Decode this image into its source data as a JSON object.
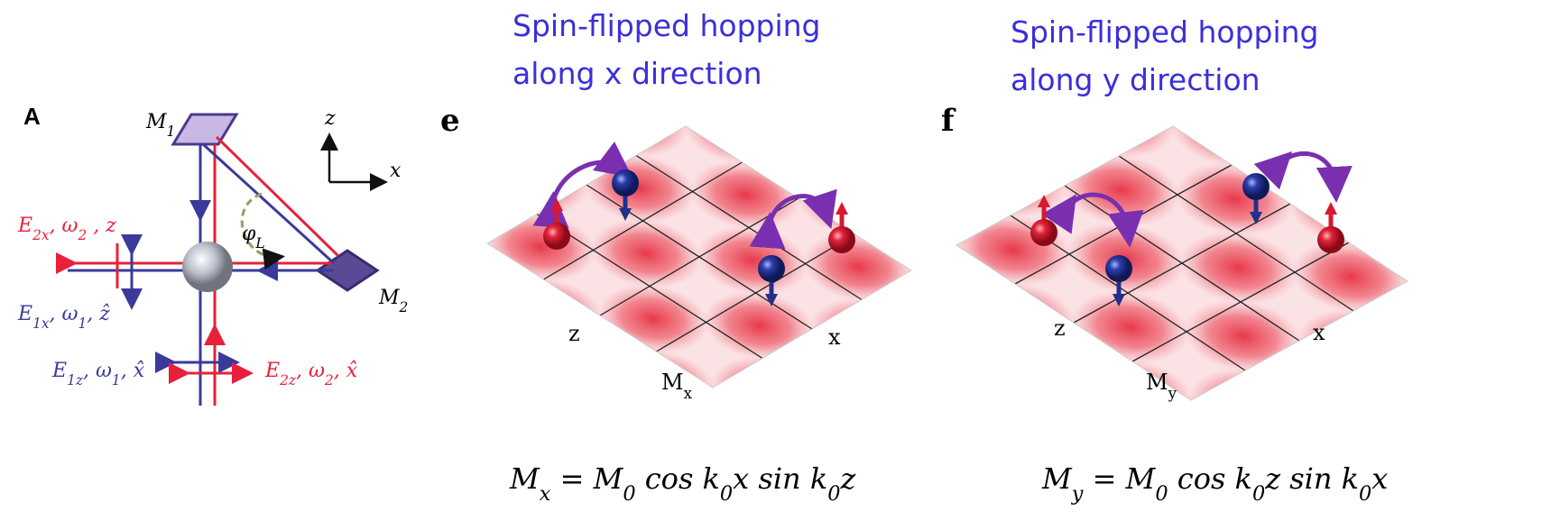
{
  "panel_a": {
    "label": "A",
    "mirror_1": [
      "M",
      "1"
    ],
    "mirror_2": [
      "M",
      "2"
    ],
    "axis_z": "z",
    "axis_x": "x",
    "angle": [
      "φ",
      "L"
    ],
    "beam_e2x": [
      "E",
      "2x",
      ", ω",
      "2",
      " , z"
    ],
    "beam_e1x": [
      "E",
      "1x",
      ", ω",
      "1",
      ", ẑ"
    ],
    "beam_e1z": [
      "E",
      "1z",
      ", ω",
      "1",
      ", x̂"
    ],
    "beam_e2z": [
      "E",
      "2z",
      ", ω",
      "2",
      ", x̂"
    ]
  },
  "panel_e": {
    "heading": [
      "Spin-flipped hopping",
      "along x direction"
    ],
    "label": "e",
    "axis_z": "z",
    "axis_x": "x",
    "lattice": [
      "M",
      "x"
    ],
    "equation": [
      "M",
      "x",
      " = M",
      "0",
      " cos k",
      "0",
      "x sin k",
      "0",
      "z"
    ]
  },
  "panel_f": {
    "heading": [
      "Spin-flipped hopping",
      "along y direction"
    ],
    "label": "f",
    "axis_z": "z",
    "axis_x": "x",
    "lattice": [
      "M",
      "y"
    ],
    "equation": [
      "M",
      "y",
      " = M",
      "0",
      " cos k",
      "0",
      "z sin k",
      "0",
      "x"
    ]
  }
}
